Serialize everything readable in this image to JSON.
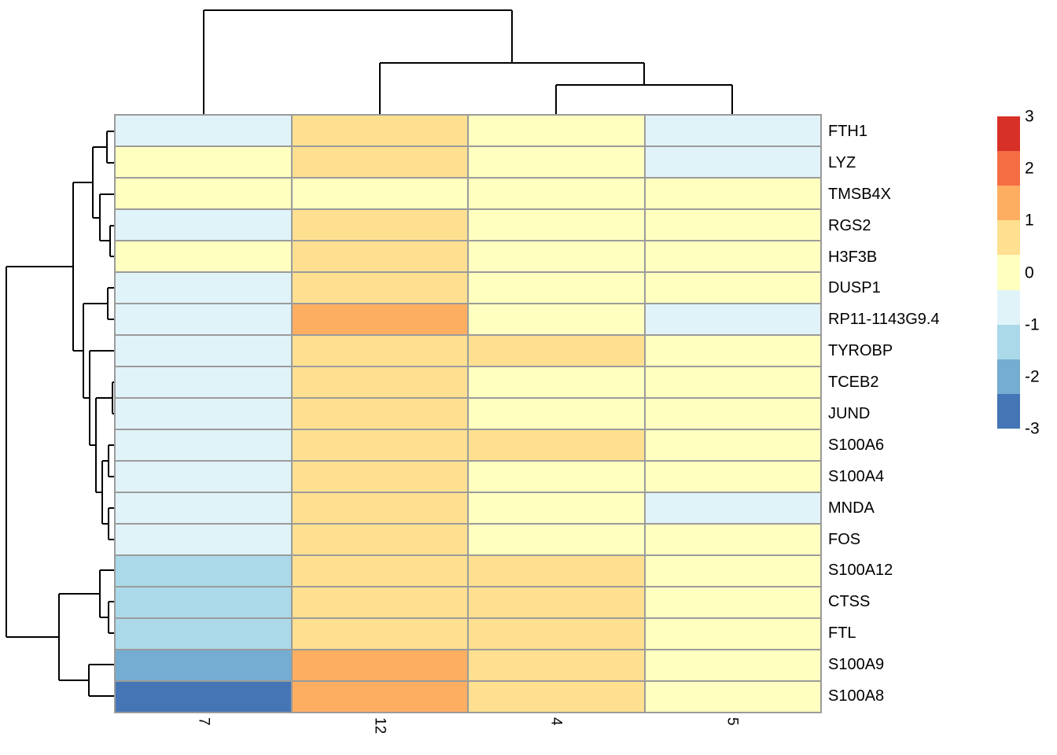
{
  "figure": {
    "kind": "clustered-heatmap",
    "description": "pheatmap-style expression heatmap with row and column dendrograms and color scale legend"
  },
  "chart_data": {
    "type": "heatmap",
    "columns": [
      "7",
      "12",
      "4",
      "5"
    ],
    "rows": [
      "FTH1",
      "LYZ",
      "TMSB4X",
      "RGS2",
      "H3F3B",
      "DUSP1",
      "RP11-1143G9.4",
      "TYROBP",
      "TCEB2",
      "JUND",
      "S100A6",
      "S100A4",
      "MNDA",
      "FOS",
      "S100A12",
      "CTSS",
      "FTL",
      "S100A9",
      "S100A8"
    ],
    "values": [
      [
        -0.7,
        0.7,
        0.0,
        -0.7
      ],
      [
        0.0,
        0.7,
        0.0,
        -0.7
      ],
      [
        0.0,
        0.0,
        0.0,
        0.0
      ],
      [
        -0.7,
        0.7,
        0.0,
        0.0
      ],
      [
        0.0,
        0.7,
        0.0,
        0.0
      ],
      [
        -0.7,
        0.7,
        0.0,
        0.0
      ],
      [
        -0.7,
        1.3,
        0.0,
        -0.7
      ],
      [
        -0.7,
        0.7,
        0.7,
        0.0
      ],
      [
        -0.7,
        0.7,
        0.0,
        0.0
      ],
      [
        -0.7,
        0.7,
        0.0,
        0.0
      ],
      [
        -0.7,
        0.7,
        0.7,
        0.0
      ],
      [
        -0.7,
        0.7,
        0.0,
        0.0
      ],
      [
        -0.7,
        0.7,
        0.0,
        -0.7
      ],
      [
        -0.7,
        0.7,
        0.0,
        0.0
      ],
      [
        -1.3,
        0.7,
        0.7,
        0.0
      ],
      [
        -1.3,
        0.7,
        0.7,
        0.0
      ],
      [
        -1.3,
        0.7,
        0.7,
        0.0
      ],
      [
        -2.0,
        1.3,
        0.7,
        0.0
      ],
      [
        -2.7,
        1.3,
        0.7,
        0.0
      ]
    ],
    "cell_colors": [
      [
        "#e0f3f8",
        "#fee090",
        "#ffffbf",
        "#e0f3f8"
      ],
      [
        "#ffffbf",
        "#fee090",
        "#ffffbf",
        "#e0f3f8"
      ],
      [
        "#ffffbf",
        "#ffffbf",
        "#ffffbf",
        "#ffffbf"
      ],
      [
        "#e0f3f8",
        "#fee090",
        "#ffffbf",
        "#ffffbf"
      ],
      [
        "#ffffbf",
        "#fee090",
        "#ffffbf",
        "#ffffbf"
      ],
      [
        "#e0f3f8",
        "#fee090",
        "#ffffbf",
        "#ffffbf"
      ],
      [
        "#e0f3f8",
        "#fdae61",
        "#ffffbf",
        "#e0f3f8"
      ],
      [
        "#e0f3f8",
        "#fee090",
        "#fee090",
        "#ffffbf"
      ],
      [
        "#e0f3f8",
        "#fee090",
        "#ffffbf",
        "#ffffbf"
      ],
      [
        "#e0f3f8",
        "#fee090",
        "#ffffbf",
        "#ffffbf"
      ],
      [
        "#e0f3f8",
        "#fee090",
        "#fee090",
        "#ffffbf"
      ],
      [
        "#e0f3f8",
        "#fee090",
        "#ffffbf",
        "#ffffbf"
      ],
      [
        "#e0f3f8",
        "#fee090",
        "#ffffbf",
        "#e0f3f8"
      ],
      [
        "#e0f3f8",
        "#fee090",
        "#ffffbf",
        "#ffffbf"
      ],
      [
        "#abd9e9",
        "#fee090",
        "#fee090",
        "#ffffbf"
      ],
      [
        "#abd9e9",
        "#fee090",
        "#fee090",
        "#ffffbf"
      ],
      [
        "#abd9e9",
        "#fee090",
        "#fee090",
        "#ffffbf"
      ],
      [
        "#74add1",
        "#fdae61",
        "#fee090",
        "#ffffbf"
      ],
      [
        "#4575b4",
        "#fdae61",
        "#fee090",
        "#ffffbf"
      ]
    ],
    "colorbar": {
      "ticks": [
        "3",
        "2",
        "1",
        "0",
        "-1",
        "-2",
        "-3"
      ],
      "colors": [
        "#d73027",
        "#f46d43",
        "#fdae61",
        "#fee090",
        "#ffffbf",
        "#e0f3f8",
        "#abd9e9",
        "#74add1",
        "#4575b4"
      ],
      "range_min": -3,
      "range_max": 3
    },
    "row_clustered": true,
    "col_clustered": true,
    "grid": true,
    "legend_position": "right"
  },
  "dendrograms": {
    "line_color": "#000000",
    "row_segments": [
      [
        136,
        167,
        136,
        207
      ],
      [
        136,
        167,
        147,
        167
      ],
      [
        136,
        207,
        147,
        207
      ],
      [
        140,
        287,
        140,
        326
      ],
      [
        140,
        287,
        147,
        287
      ],
      [
        140,
        326,
        147,
        326
      ],
      [
        127,
        247,
        127,
        306
      ],
      [
        127,
        247,
        147,
        247
      ],
      [
        127,
        306,
        140,
        306
      ],
      [
        118,
        187,
        118,
        277
      ],
      [
        118,
        187,
        136,
        187
      ],
      [
        118,
        277,
        127,
        277
      ],
      [
        137,
        366,
        137,
        406
      ],
      [
        137,
        366,
        147,
        366
      ],
      [
        137,
        406,
        147,
        406
      ],
      [
        143,
        486,
        143,
        526
      ],
      [
        143,
        486,
        147,
        486
      ],
      [
        143,
        526,
        147,
        526
      ],
      [
        138,
        566,
        138,
        606
      ],
      [
        138,
        566,
        147,
        566
      ],
      [
        138,
        606,
        147,
        606
      ],
      [
        138,
        646,
        138,
        686
      ],
      [
        138,
        646,
        147,
        646
      ],
      [
        138,
        686,
        147,
        686
      ],
      [
        130,
        586,
        130,
        666
      ],
      [
        130,
        586,
        138,
        586
      ],
      [
        130,
        666,
        138,
        666
      ],
      [
        122,
        506,
        122,
        626
      ],
      [
        122,
        506,
        143,
        506
      ],
      [
        122,
        626,
        130,
        626
      ],
      [
        114,
        446,
        114,
        566
      ],
      [
        114,
        446,
        147,
        446
      ],
      [
        114,
        566,
        122,
        566
      ],
      [
        106,
        386,
        106,
        506
      ],
      [
        106,
        386,
        137,
        386
      ],
      [
        106,
        506,
        114,
        506
      ],
      [
        93,
        232,
        93,
        446
      ],
      [
        93,
        232,
        118,
        232
      ],
      [
        93,
        446,
        106,
        446
      ],
      [
        138,
        765,
        138,
        805
      ],
      [
        138,
        765,
        147,
        765
      ],
      [
        138,
        805,
        147,
        805
      ],
      [
        127,
        725,
        127,
        785
      ],
      [
        127,
        725,
        147,
        725
      ],
      [
        127,
        785,
        138,
        785
      ],
      [
        113,
        845,
        113,
        885
      ],
      [
        113,
        845,
        147,
        845
      ],
      [
        113,
        885,
        147,
        885
      ],
      [
        75,
        755,
        75,
        865
      ],
      [
        75,
        755,
        127,
        755
      ],
      [
        75,
        865,
        113,
        865
      ],
      [
        8,
        339,
        8,
        810
      ],
      [
        8,
        339,
        93,
        339
      ],
      [
        8,
        810,
        75,
        810
      ]
    ],
    "col_segments": [
      [
        259,
        13,
        651,
        13
      ],
      [
        259,
        13,
        259,
        147
      ],
      [
        651,
        13,
        651,
        80
      ],
      [
        483,
        80,
        819,
        80
      ],
      [
        483,
        80,
        483,
        147
      ],
      [
        819,
        80,
        819,
        108
      ],
      [
        707,
        108,
        931,
        108
      ],
      [
        707,
        108,
        707,
        147
      ],
      [
        931,
        108,
        931,
        147
      ]
    ]
  },
  "style": {
    "background": "#ffffff",
    "grid_line_color": "#9b9b9b",
    "label_color": "#000000"
  }
}
